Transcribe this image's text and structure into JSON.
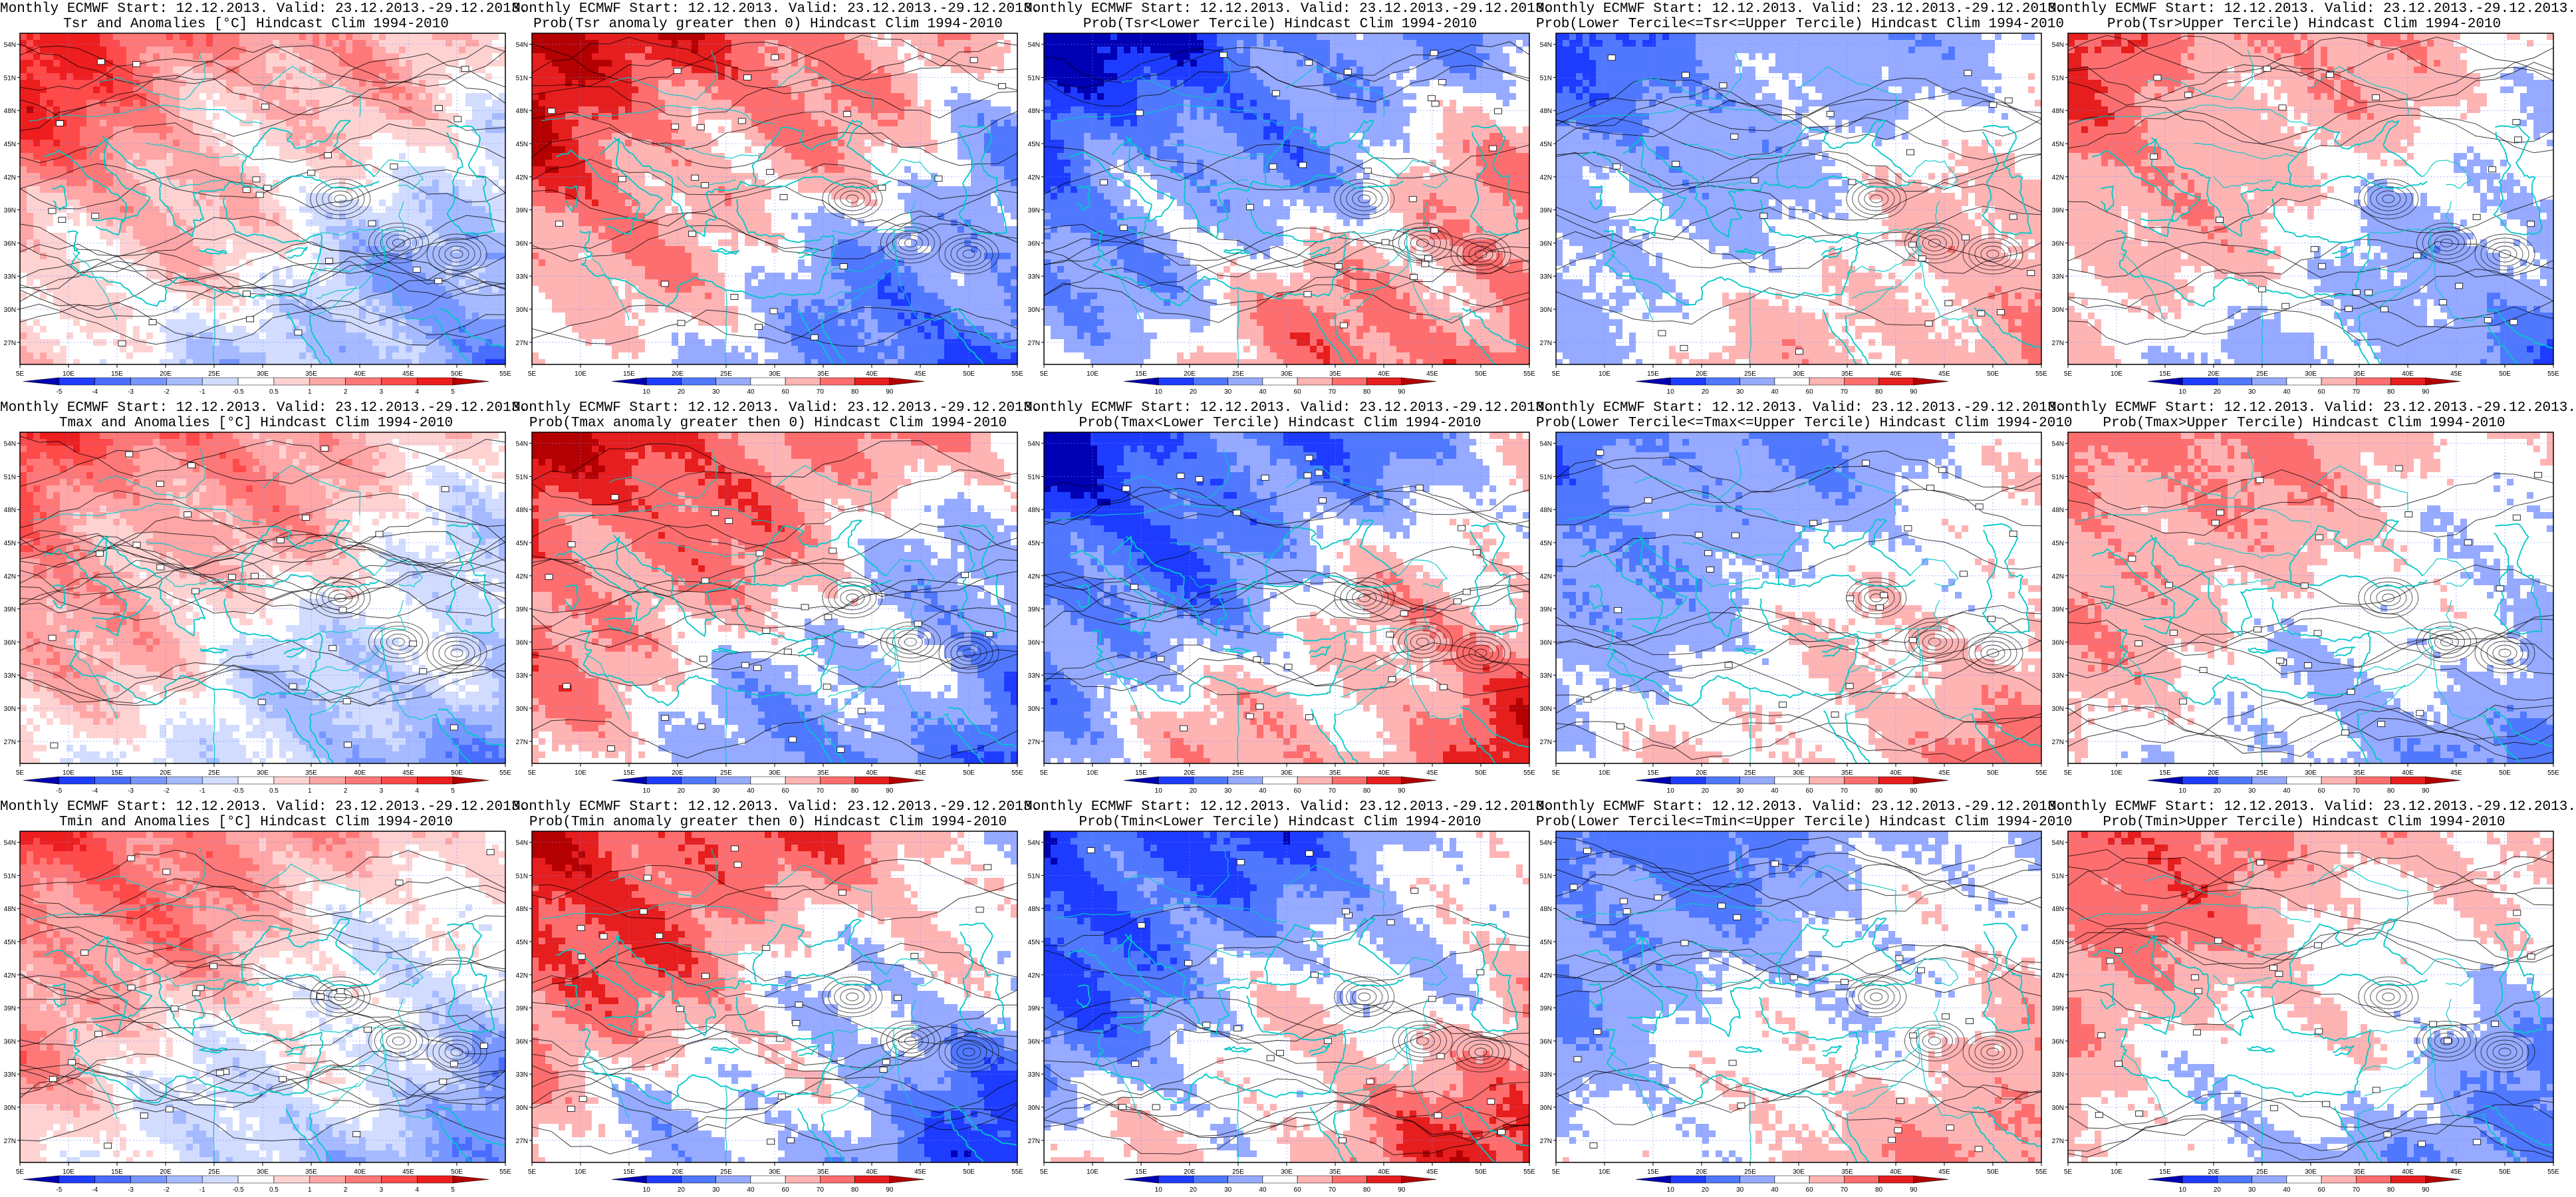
{
  "panels": [
    [
      {
        "title1": "Monthly ECMWF Start: 12.12.2013. Valid: 23.12.2013.-29.12.2013.",
        "title2": "Tsr and Anomalies [°C] Hindcast Clim 1994-2010",
        "kind": "anom",
        "warm": 0.7
      },
      {
        "title1": "Monthly ECMWF Start: 12.12.2013. Valid: 23.12.2013.-29.12.2013.",
        "title2": "Prob(Tsr anomaly greater then 0) Hindcast Clim 1994-2010",
        "kind": "prob",
        "warm": 0.85
      },
      {
        "title1": "Monthly ECMWF Start: 12.12.2013. Valid: 23.12.2013.-29.12.2013.",
        "title2": "Prob(Tsr<Lower Tercile) Hindcast Clim 1994-2010",
        "kind": "prob",
        "warm": -0.85
      },
      {
        "title1": "Monthly ECMWF Start: 12.12.2013. Valid: 23.12.2013.-29.12.2013.",
        "title2": "Prob(Lower Tercile<=Tsr<=Upper Tercile) Hindcast Clim 1994-2010",
        "kind": "prob",
        "warm": -0.5
      },
      {
        "title1": "Monthly ECMWF Start: 12.12.2013. Valid: 23.12.2013.-29.12.2013.",
        "title2": "Prob(Tsr>Upper Tercile) Hindcast Clim 1994-2010",
        "kind": "prob",
        "warm": 0.55
      }
    ],
    [
      {
        "title1": "Monthly ECMWF Start: 12.12.2013. Valid: 23.12.2013.-29.12.2013.",
        "title2": "Tmax and Anomalies [°C] Hindcast Clim 1994-2010",
        "kind": "anom",
        "warm": 0.65
      },
      {
        "title1": "Monthly ECMWF Start: 12.12.2013. Valid: 23.12.2013.-29.12.2013.",
        "title2": "Prob(Tmax anomaly greater then 0) Hindcast Clim 1994-2010",
        "kind": "prob",
        "warm": 0.8
      },
      {
        "title1": "Monthly ECMWF Start: 12.12.2013. Valid: 23.12.2013.-29.12.2013.",
        "title2": "Prob(Tmax<Lower Tercile) Hindcast Clim 1994-2010",
        "kind": "prob",
        "warm": -0.85
      },
      {
        "title1": "Monthly ECMWF Start: 12.12.2013. Valid: 23.12.2013.-29.12.2013.",
        "title2": "Prob(Lower Tercile<=Tmax<=Upper Tercile) Hindcast Clim 1994-2010",
        "kind": "prob",
        "warm": -0.5
      },
      {
        "title1": "Monthly ECMWF Start: 12.12.2013. Valid: 23.12.2013.-29.12.2013.",
        "title2": "Prob(Tmax>Upper Tercile) Hindcast Clim 1994-2010",
        "kind": "prob",
        "warm": 0.5
      }
    ],
    [
      {
        "title1": "Monthly ECMWF Start: 12.12.2013. Valid: 23.12.2013.-29.12.2013.",
        "title2": "Tmin and Anomalies [°C] Hindcast Clim 1994-2010",
        "kind": "anom",
        "warm": 0.65
      },
      {
        "title1": "Monthly ECMWF Start: 12.12.2013. Valid: 23.12.2013.-29.12.2013.",
        "title2": "Prob(Tmin anomaly greater then 0) Hindcast Clim 1994-2010",
        "kind": "prob",
        "warm": 0.8
      },
      {
        "title1": "Monthly ECMWF Start: 12.12.2013. Valid: 23.12.2013.-29.12.2013.",
        "title2": "Prob(Tmin<Lower Tercile) Hindcast Clim 1994-2010",
        "kind": "prob",
        "warm": -0.8
      },
      {
        "title1": "Monthly ECMWF Start: 12.12.2013. Valid: 23.12.2013.-29.12.2013.",
        "title2": "Prob(Lower Tercile<=Tmin<=Upper Tercile) Hindcast Clim 1994-2010",
        "kind": "prob",
        "warm": -0.5
      },
      {
        "title1": "Monthly ECMWF Start: 12.12.2013. Valid: 23.12.2013.-29.12.2013.",
        "title2": "Prob(Tmin>Upper Tercile) Hindcast Clim 1994-2010",
        "kind": "prob",
        "warm": 0.55
      }
    ]
  ],
  "axes": {
    "lon": [
      "5E",
      "10E",
      "15E",
      "20E",
      "25E",
      "30E",
      "35E",
      "40E",
      "45E",
      "50E",
      "55E"
    ],
    "lat": [
      "27N",
      "30N",
      "33N",
      "36N",
      "39N",
      "42N",
      "45N",
      "48N",
      "51N",
      "54N"
    ]
  },
  "colorbars": {
    "anom": [
      "-5",
      "-4",
      "-3",
      "-2",
      "-1",
      "-0.5",
      "0.5",
      "1",
      "2",
      "3",
      "4",
      "5"
    ],
    "prob": [
      "10",
      "20",
      "30",
      "40",
      "60",
      "70",
      "80",
      "90"
    ]
  },
  "colors": {
    "anom": [
      "#0000b4",
      "#1e3cff",
      "#4a6cff",
      "#7896ff",
      "#a6bbff",
      "#d2dcff",
      "#ffffff",
      "#ffd2d2",
      "#ffa6a6",
      "#ff7878",
      "#ff4a4a",
      "#ee1e1e",
      "#b40000"
    ],
    "prob": [
      "#0000b4",
      "#1e3cff",
      "#5078ff",
      "#96aaff",
      "#ffffff",
      "#ffb4b4",
      "#ff6e6e",
      "#e61e1e",
      "#b40000"
    ],
    "coast": "#00c8c8",
    "contour": "#000000"
  }
}
